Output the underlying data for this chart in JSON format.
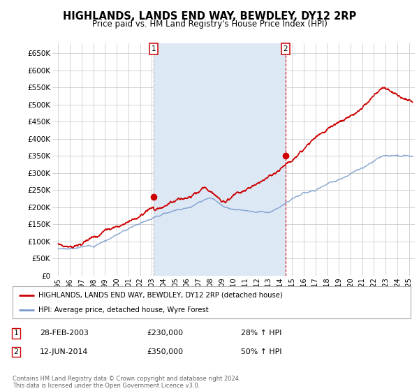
{
  "title": "HIGHLANDS, LANDS END WAY, BEWDLEY, DY12 2RP",
  "subtitle": "Price paid vs. HM Land Registry's House Price Index (HPI)",
  "title_fontsize": 10.5,
  "subtitle_fontsize": 8.5,
  "background_color": "#ffffff",
  "plot_bg_color": "#ffffff",
  "grid_color": "#cccccc",
  "shade_color": "#dde8f5",
  "ylim": [
    0,
    680000
  ],
  "yticks": [
    0,
    50000,
    100000,
    150000,
    200000,
    250000,
    300000,
    350000,
    400000,
    450000,
    500000,
    550000,
    600000,
    650000
  ],
  "xlim_start": 1994.5,
  "xlim_end": 2025.5,
  "xticks": [
    1995,
    1996,
    1997,
    1998,
    1999,
    2000,
    2001,
    2002,
    2003,
    2004,
    2005,
    2006,
    2007,
    2008,
    2009,
    2010,
    2011,
    2012,
    2013,
    2014,
    2015,
    2016,
    2017,
    2018,
    2019,
    2020,
    2021,
    2022,
    2023,
    2024,
    2025
  ],
  "red_line_color": "#cc0000",
  "blue_line_color": "#7799cc",
  "marker1_x": 2003.15,
  "marker1_y": 230000,
  "marker2_x": 2014.45,
  "marker2_y": 350000,
  "vline1_x": 2003.15,
  "vline2_x": 2014.45,
  "legend_red": "HIGHLANDS, LANDS END WAY, BEWDLEY, DY12 2RP (detached house)",
  "legend_blue": "HPI: Average price, detached house, Wyre Forest",
  "sale1_label": "1",
  "sale1_date": "28-FEB-2003",
  "sale1_price": "£230,000",
  "sale1_hpi": "28% ↑ HPI",
  "sale2_label": "2",
  "sale2_date": "12-JUN-2014",
  "sale2_price": "£350,000",
  "sale2_hpi": "50% ↑ HPI",
  "footer": "Contains HM Land Registry data © Crown copyright and database right 2024.\nThis data is licensed under the Open Government Licence v3.0."
}
